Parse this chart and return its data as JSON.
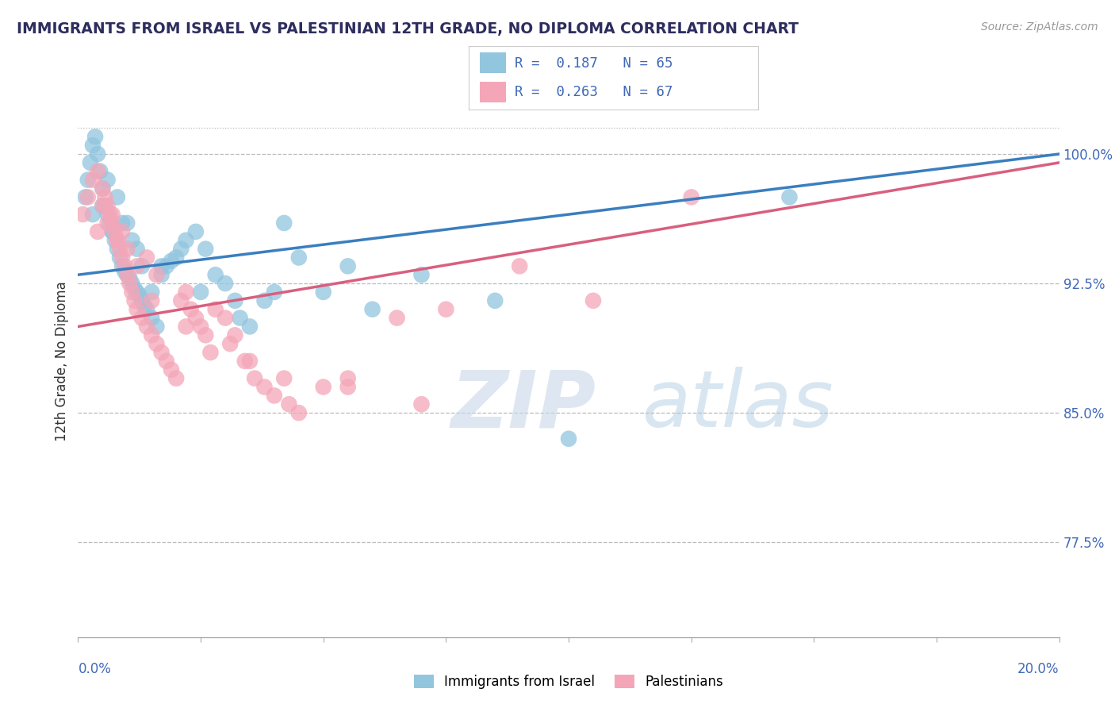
{
  "title": "IMMIGRANTS FROM ISRAEL VS PALESTINIAN 12TH GRADE, NO DIPLOMA CORRELATION CHART",
  "source": "Source: ZipAtlas.com",
  "ylabel": "12th Grade, No Diploma",
  "xmin": 0.0,
  "xmax": 20.0,
  "ymin": 72.0,
  "ymax": 104.0,
  "yticks": [
    77.5,
    85.0,
    92.5,
    100.0
  ],
  "ytick_labels": [
    "77.5%",
    "85.0%",
    "92.5%",
    "100.0%"
  ],
  "legend_R1": "R =  0.187",
  "legend_N1": "N = 65",
  "legend_R2": "R =  0.263",
  "legend_N2": "N = 67",
  "legend_label1": "Immigrants from Israel",
  "legend_label2": "Palestinians",
  "blue_color": "#92c5de",
  "pink_color": "#f4a6b8",
  "blue_line_color": "#3a7ebf",
  "pink_line_color": "#d95f7f",
  "watermark_zip": "ZIP",
  "watermark_atlas": "atlas",
  "blue_line_x": [
    0,
    20
  ],
  "blue_line_y": [
    93.0,
    100.0
  ],
  "pink_line_x": [
    0,
    20
  ],
  "pink_line_y": [
    90.0,
    99.5
  ],
  "blue_x": [
    0.15,
    0.2,
    0.25,
    0.3,
    0.35,
    0.4,
    0.45,
    0.5,
    0.55,
    0.6,
    0.65,
    0.7,
    0.75,
    0.8,
    0.85,
    0.9,
    0.95,
    1.0,
    1.05,
    1.1,
    1.15,
    1.2,
    1.25,
    1.3,
    1.35,
    1.4,
    1.5,
    1.6,
    1.7,
    1.8,
    1.9,
    2.0,
    2.1,
    2.2,
    2.4,
    2.6,
    2.8,
    3.0,
    3.2,
    3.5,
    3.8,
    4.2,
    4.5,
    5.0,
    5.5,
    6.0,
    7.0,
    8.5,
    10.0,
    14.5,
    0.3,
    0.5,
    0.7,
    0.9,
    1.1,
    1.3,
    2.5,
    3.3,
    1.5,
    4.0,
    0.6,
    0.8,
    1.0,
    1.2,
    1.7
  ],
  "blue_y": [
    97.5,
    98.5,
    99.5,
    100.5,
    101.0,
    100.0,
    99.0,
    98.0,
    97.0,
    96.5,
    96.0,
    95.5,
    95.0,
    94.5,
    94.0,
    93.5,
    93.2,
    93.0,
    92.8,
    92.5,
    92.2,
    92.0,
    91.8,
    91.5,
    91.2,
    91.0,
    90.5,
    90.0,
    93.0,
    93.5,
    93.8,
    94.0,
    94.5,
    95.0,
    95.5,
    94.5,
    93.0,
    92.5,
    91.5,
    90.0,
    91.5,
    96.0,
    94.0,
    92.0,
    93.5,
    91.0,
    93.0,
    91.5,
    83.5,
    97.5,
    96.5,
    97.0,
    95.5,
    96.0,
    95.0,
    93.5,
    92.0,
    90.5,
    92.0,
    92.0,
    98.5,
    97.5,
    96.0,
    94.5,
    93.5
  ],
  "pink_x": [
    0.1,
    0.2,
    0.3,
    0.4,
    0.5,
    0.55,
    0.6,
    0.65,
    0.7,
    0.75,
    0.8,
    0.85,
    0.9,
    0.95,
    1.0,
    1.05,
    1.1,
    1.15,
    1.2,
    1.3,
    1.4,
    1.5,
    1.6,
    1.7,
    1.8,
    1.9,
    2.0,
    2.1,
    2.2,
    2.3,
    2.4,
    2.5,
    2.6,
    2.8,
    3.0,
    3.2,
    3.4,
    3.6,
    3.8,
    4.0,
    4.3,
    4.5,
    5.0,
    5.5,
    6.5,
    7.5,
    9.0,
    10.5,
    12.5,
    0.4,
    0.6,
    0.8,
    1.0,
    1.2,
    1.4,
    1.6,
    2.2,
    3.1,
    3.5,
    4.2,
    5.5,
    7.0,
    0.5,
    0.7,
    0.9,
    1.5,
    2.7
  ],
  "pink_y": [
    96.5,
    97.5,
    98.5,
    99.0,
    98.0,
    97.5,
    97.0,
    96.5,
    96.0,
    95.5,
    95.0,
    94.5,
    94.0,
    93.5,
    93.0,
    92.5,
    92.0,
    91.5,
    91.0,
    90.5,
    90.0,
    89.5,
    89.0,
    88.5,
    88.0,
    87.5,
    87.0,
    91.5,
    92.0,
    91.0,
    90.5,
    90.0,
    89.5,
    91.0,
    90.5,
    89.5,
    88.0,
    87.0,
    86.5,
    86.0,
    85.5,
    85.0,
    86.5,
    87.0,
    90.5,
    91.0,
    93.5,
    91.5,
    97.5,
    95.5,
    96.0,
    95.0,
    94.5,
    93.5,
    94.0,
    93.0,
    90.0,
    89.0,
    88.0,
    87.0,
    86.5,
    85.5,
    97.0,
    96.5,
    95.5,
    91.5,
    88.5
  ]
}
